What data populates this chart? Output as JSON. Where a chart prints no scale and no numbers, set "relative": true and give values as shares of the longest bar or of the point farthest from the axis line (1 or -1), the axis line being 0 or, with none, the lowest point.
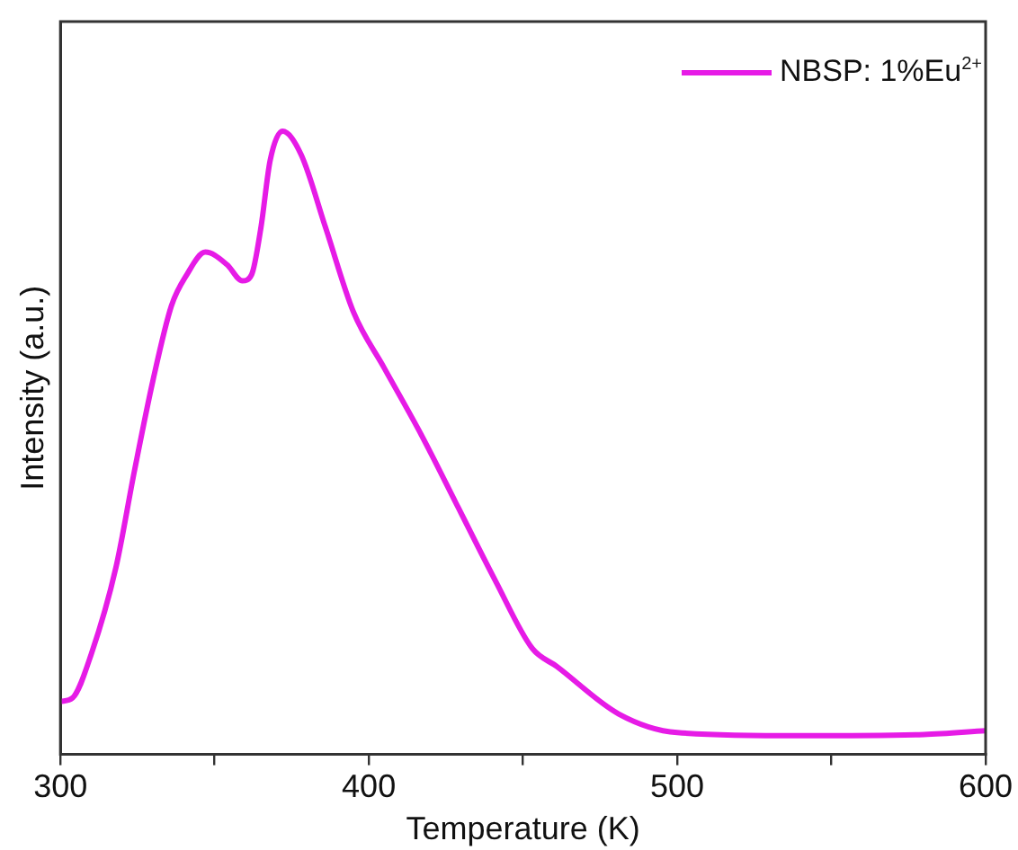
{
  "chart_data": {
    "type": "line",
    "xlabel": "Temperature (K)",
    "ylabel": "Intensity (a.u.)",
    "relative": true,
    "xlim": [
      300,
      600
    ],
    "xticks": [
      300,
      {
        "value": 350,
        "label": null
      },
      400,
      {
        "value": 450,
        "label": null
      },
      500,
      {
        "value": 550,
        "label": null
      },
      600
    ],
    "legend": "top right",
    "grid": false,
    "marker": "none",
    "line_style": "solid",
    "series": [
      {
        "name": "NBSP: 1%Eu$^{2+}$",
        "color": "#e61be6",
        "x": [
          300,
          304,
          310,
          318,
          324,
          330,
          336,
          341,
          347,
          354,
          359,
          362,
          365,
          368,
          372,
          378,
          386,
          395,
          405,
          417,
          429,
          441,
          453,
          461,
          481,
          500,
          540,
          580,
          600
        ],
        "values": [
          0.085,
          0.091,
          0.161,
          0.3,
          0.455,
          0.6,
          0.72,
          0.77,
          0.806,
          0.786,
          0.76,
          0.77,
          0.845,
          0.953,
          1,
          0.963,
          0.845,
          0.71,
          0.62,
          0.513,
          0.396,
          0.279,
          0.17,
          0.141,
          0.065,
          0.035,
          0.03,
          0.032,
          0.038
        ]
      }
    ]
  }
}
